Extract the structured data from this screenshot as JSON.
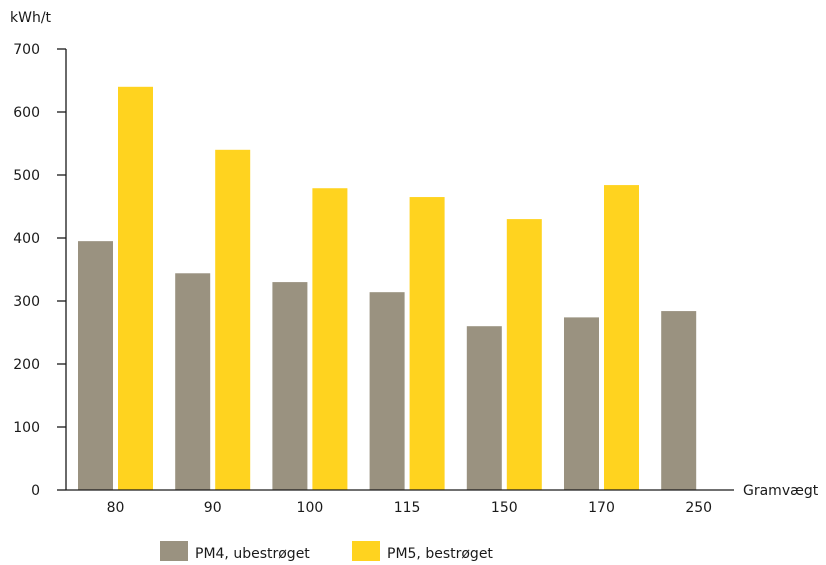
{
  "chart_data": {
    "type": "bar",
    "title": "",
    "xlabel": "Gramvægt",
    "ylabel": "kWh/t",
    "ylim": [
      0,
      700
    ],
    "yticks": [
      0,
      100,
      200,
      300,
      400,
      500,
      600,
      700
    ],
    "categories": [
      "80",
      "90",
      "100",
      "115",
      "150",
      "170",
      "250"
    ],
    "series": [
      {
        "name": "PM4, ubestrøget",
        "color": "#9a9280",
        "values": [
          395,
          344,
          330,
          314,
          260,
          274,
          284
        ]
      },
      {
        "name": "PM5, bestrøget",
        "color": "#ffd31f",
        "values": [
          640,
          540,
          479,
          465,
          430,
          484,
          null
        ]
      }
    ],
    "grid": false,
    "legend_position": "bottom"
  }
}
